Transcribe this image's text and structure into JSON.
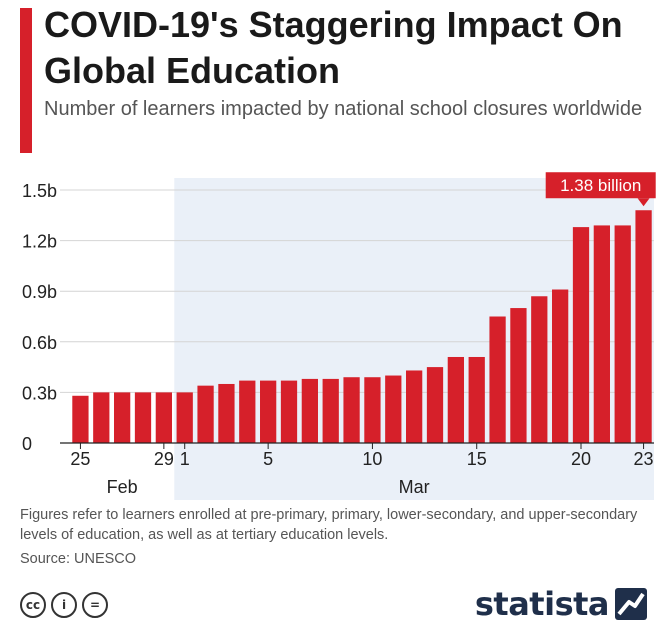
{
  "header": {
    "title": "COVID-19's Staggering Impact On Global Education",
    "subtitle": "Number of learners impacted by national school closures worldwide"
  },
  "colors": {
    "accent": "#d6202a",
    "shade": "#eaf0f8",
    "text": "#1a1a1a",
    "brand": "#1f2f4a"
  },
  "chart_data": {
    "type": "bar",
    "title": "COVID-19's Staggering Impact On Global Education",
    "xlabel": "",
    "ylabel": "",
    "unit": "billion learners",
    "ylim": [
      0,
      1.5
    ],
    "yticks": [
      {
        "v": 0,
        "label": "0"
      },
      {
        "v": 0.3,
        "label": "0.3b"
      },
      {
        "v": 0.6,
        "label": "0.6b"
      },
      {
        "v": 0.9,
        "label": "0.9b"
      },
      {
        "v": 1.2,
        "label": "1.2b"
      },
      {
        "v": 1.5,
        "label": "1.5b"
      }
    ],
    "categories": [
      "Feb 25",
      "Feb 26",
      "Feb 27",
      "Feb 28",
      "Feb 29",
      "Mar 1",
      "Mar 2",
      "Mar 3",
      "Mar 4",
      "Mar 5",
      "Mar 6",
      "Mar 7",
      "Mar 8",
      "Mar 9",
      "Mar 10",
      "Mar 11",
      "Mar 12",
      "Mar 13",
      "Mar 14",
      "Mar 15",
      "Mar 16",
      "Mar 17",
      "Mar 18",
      "Mar 19",
      "Mar 20",
      "Mar 21",
      "Mar 22",
      "Mar 23"
    ],
    "values": [
      0.28,
      0.3,
      0.3,
      0.3,
      0.3,
      0.3,
      0.34,
      0.35,
      0.37,
      0.37,
      0.37,
      0.38,
      0.38,
      0.39,
      0.39,
      0.4,
      0.43,
      0.45,
      0.51,
      0.51,
      0.75,
      0.8,
      0.87,
      0.91,
      1.28,
      1.29,
      1.29,
      1.38
    ],
    "x_tick_labels": [
      {
        "index": 0,
        "label": "25"
      },
      {
        "index": 4,
        "label": "29"
      },
      {
        "index": 5,
        "label": "1"
      },
      {
        "index": 9,
        "label": "5"
      },
      {
        "index": 14,
        "label": "10"
      },
      {
        "index": 19,
        "label": "15"
      },
      {
        "index": 24,
        "label": "20"
      },
      {
        "index": 27,
        "label": "23"
      }
    ],
    "month_labels": [
      {
        "label": "Feb",
        "from_index": 0,
        "to_index": 4
      },
      {
        "label": "Mar",
        "from_index": 5,
        "to_index": 27
      }
    ],
    "shaded_range": {
      "from_index": 5,
      "to_index": 27
    },
    "callout": {
      "index": 27,
      "label": "1.38 billion"
    },
    "grid": true,
    "legend": "none"
  },
  "footer": {
    "note": "Figures refer to learners enrolled at pre-primary, primary, lower-secondary, and upper-secondary levels of education, as well as at tertiary education levels.",
    "source": "Source: UNESCO",
    "license_icons": [
      {
        "name": "cc-icon",
        "glyph": "cc"
      },
      {
        "name": "attribution-icon",
        "glyph": "i"
      },
      {
        "name": "no-derivatives-icon",
        "glyph": "="
      }
    ],
    "brand": "statista"
  }
}
